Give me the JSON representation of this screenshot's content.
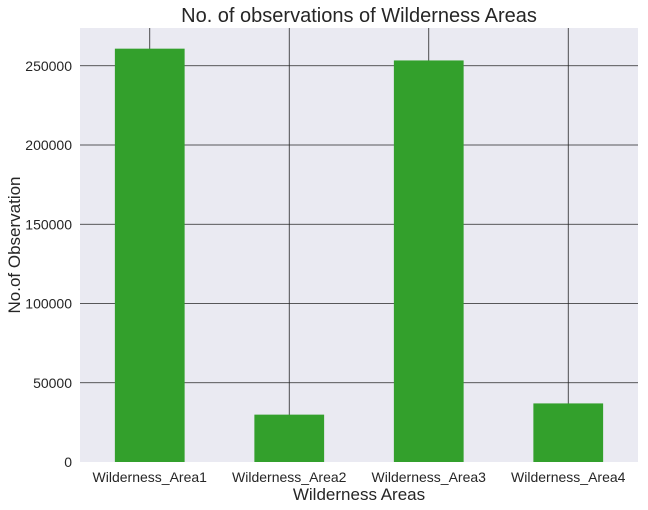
{
  "chart_data": {
    "type": "bar",
    "title": "No. of observations of Wilderness Areas",
    "xlabel": "Wilderness Areas",
    "ylabel": "No.of Observation",
    "categories": [
      "Wilderness_Area1",
      "Wilderness_Area2",
      "Wilderness_Area3",
      "Wilderness_Area4"
    ],
    "values": [
      260796,
      29884,
      253364,
      36968
    ],
    "ylim": [
      0,
      273836
    ],
    "yticks": [
      0,
      50000,
      100000,
      150000,
      200000,
      250000
    ],
    "ytick_labels": [
      "0",
      "50000",
      "100000",
      "150000",
      "200000",
      "250000"
    ],
    "grid": true,
    "legend": "none",
    "bar_color": "#33a02c",
    "background_color": "#eaeaf2",
    "grid_color": "#262626"
  }
}
